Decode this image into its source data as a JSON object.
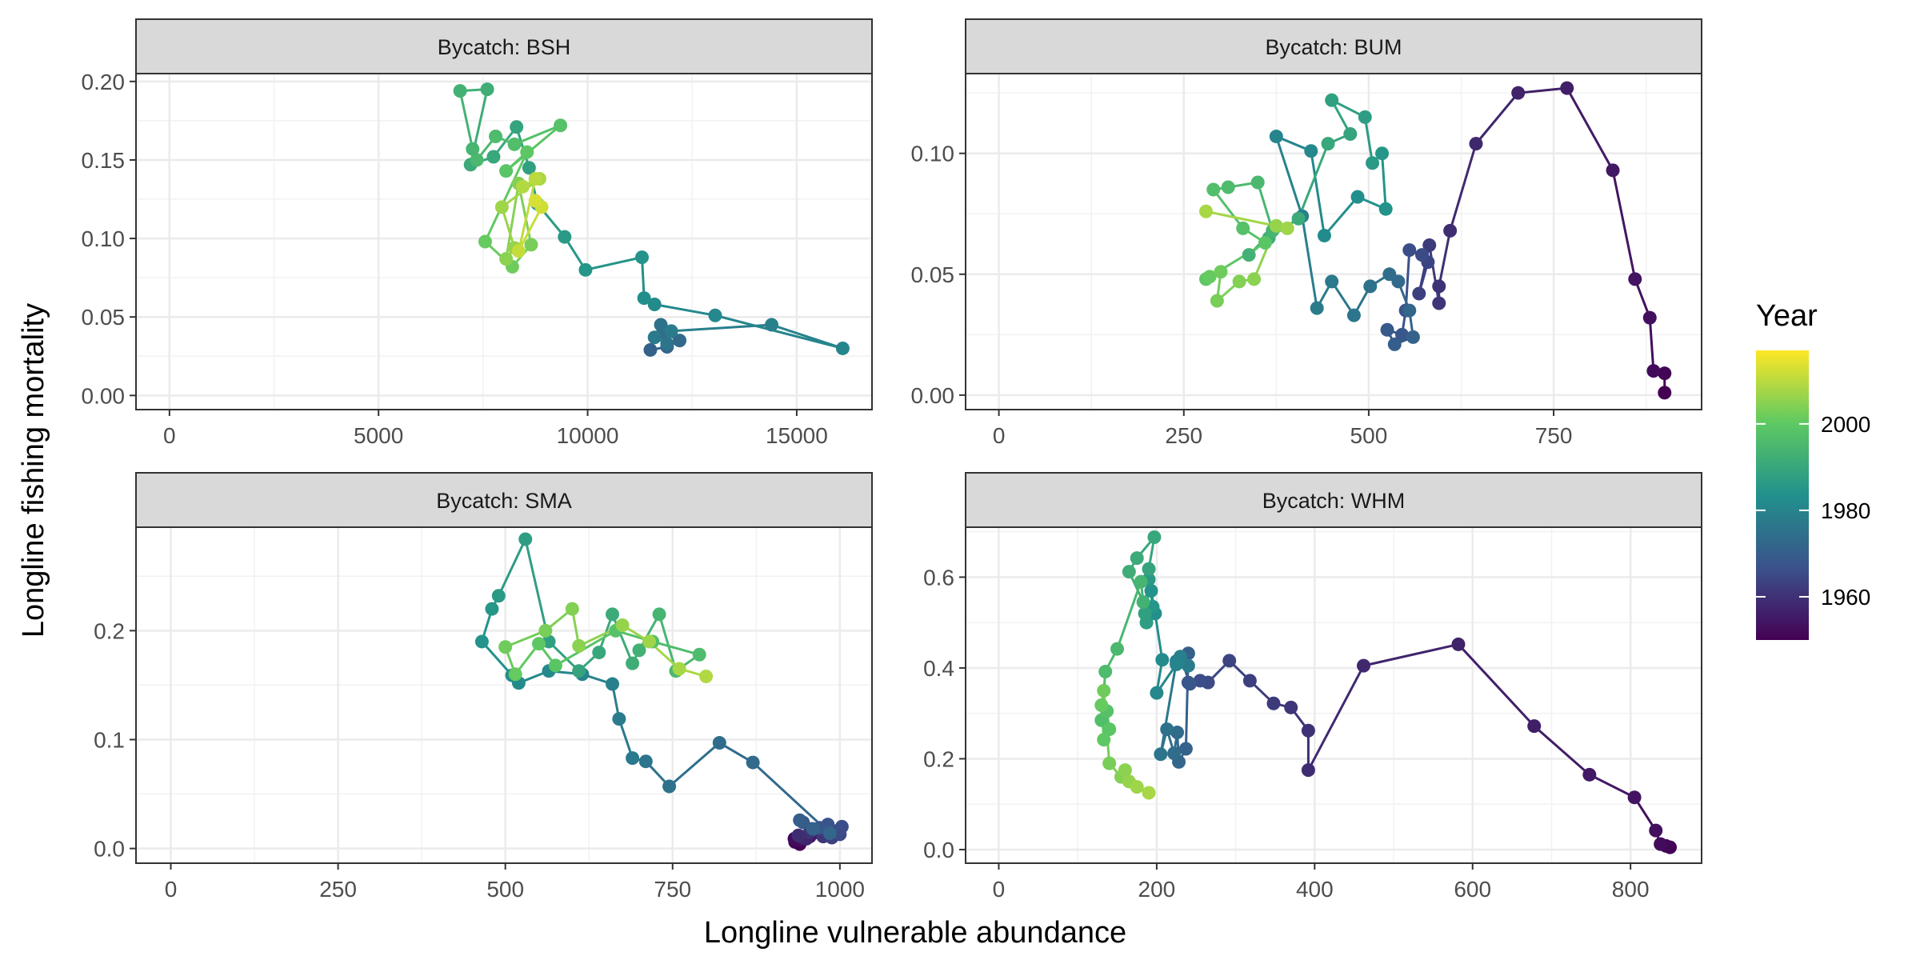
{
  "chart_data": {
    "type": "scatter",
    "style": "connected-path",
    "xlabel": "Longline vulnerable abundance",
    "ylabel": "Longline fishing mortality",
    "legend": {
      "title": "Year",
      "position": "right",
      "range": [
        1950,
        2017
      ],
      "ticks": [
        1960,
        1980,
        2000
      ]
    },
    "panels": [
      {
        "label": "Bycatch: BSH",
        "xlim": [
          -800,
          16800
        ],
        "ylim": [
          -0.009,
          0.205
        ],
        "xticks": [
          0,
          5000,
          10000,
          15000
        ],
        "xtick_labels": [
          "0",
          "5000",
          "10000",
          "15000"
        ],
        "yticks": [
          0,
          0.05,
          0.1,
          0.15,
          0.2
        ],
        "ytick_labels": [
          "0.00",
          "0.05",
          "0.10",
          "0.15",
          "0.20"
        ],
        "year_start": 1971,
        "x": [
          11500,
          11900,
          12200,
          11800,
          11750,
          11900,
          11600,
          12000,
          14400,
          16100,
          13050,
          11600,
          11350,
          11300,
          9950,
          9450,
          8800,
          8600,
          8300,
          7750,
          7200,
          7600,
          6950,
          7250,
          7350,
          7800,
          8250,
          9350,
          8050,
          8550,
          7550,
          8200,
          8650,
          8350,
          8050,
          8250,
          7950,
          8850,
          8450,
          8750,
          8350,
          8900,
          8750
        ],
        "y": [
          0.029,
          0.031,
          0.035,
          0.04,
          0.045,
          0.033,
          0.037,
          0.041,
          0.045,
          0.03,
          0.051,
          0.058,
          0.062,
          0.088,
          0.08,
          0.101,
          0.122,
          0.145,
          0.171,
          0.152,
          0.147,
          0.195,
          0.194,
          0.157,
          0.15,
          0.165,
          0.16,
          0.172,
          0.143,
          0.155,
          0.098,
          0.082,
          0.096,
          0.135,
          0.087,
          0.094,
          0.12,
          0.138,
          0.133,
          0.138,
          0.092,
          0.12,
          0.124
        ]
      },
      {
        "label": "Bycatch: BUM",
        "xlim": [
          -45,
          950
        ],
        "ylim": [
          -0.006,
          0.133
        ],
        "xticks": [
          0,
          250,
          500,
          750
        ],
        "xtick_labels": [
          "0",
          "250",
          "500",
          "750"
        ],
        "yticks": [
          0,
          0.05,
          0.1
        ],
        "ytick_labels": [
          "0.00",
          "0.05",
          "0.10"
        ],
        "year_start": 1950,
        "x": [
          900,
          900,
          885,
          880,
          860,
          830,
          768,
          702,
          645,
          610,
          595,
          595,
          582,
          568,
          580,
          572,
          555,
          550,
          545,
          525,
          535,
          560,
          555,
          540,
          528,
          502,
          480,
          450,
          430,
          410,
          375,
          422,
          440,
          485,
          523,
          518,
          505,
          495,
          450,
          475,
          445,
          405,
          365,
          338,
          370,
          350,
          310,
          290,
          330,
          360,
          280,
          285,
          300,
          295,
          325,
          345,
          375,
          390,
          280
        ],
        "y": [
          0.001,
          0.009,
          0.01,
          0.032,
          0.048,
          0.093,
          0.127,
          0.125,
          0.104,
          0.068,
          0.045,
          0.038,
          0.062,
          0.042,
          0.055,
          0.058,
          0.06,
          0.035,
          0.025,
          0.027,
          0.021,
          0.024,
          0.035,
          0.047,
          0.05,
          0.045,
          0.033,
          0.047,
          0.036,
          0.074,
          0.107,
          0.101,
          0.066,
          0.082,
          0.077,
          0.1,
          0.096,
          0.115,
          0.122,
          0.108,
          0.104,
          0.073,
          0.065,
          0.058,
          0.068,
          0.088,
          0.086,
          0.085,
          0.069,
          0.063,
          0.048,
          0.049,
          0.051,
          0.039,
          0.047,
          0.048,
          0.07,
          0.069,
          0.076
        ]
      },
      {
        "label": "Bycatch: SMA",
        "xlim": [
          -52,
          1048
        ],
        "ylim": [
          -0.0135,
          0.295
        ],
        "xticks": [
          0,
          250,
          500,
          750,
          1000
        ],
        "xtick_labels": [
          "0",
          "250",
          "500",
          "750",
          "1000"
        ],
        "yticks": [
          0,
          0.1,
          0.2
        ],
        "ytick_labels": [
          "0.0",
          "0.1",
          "0.2"
        ],
        "year_start": 1950,
        "x": [
          940,
          933,
          932,
          943,
          955,
          960,
          968,
          950,
          945,
          938,
          955,
          975,
          958,
          988,
          985,
          1000,
          1003,
          982,
          970,
          945,
          940,
          960,
          985,
          870,
          820,
          745,
          710,
          690,
          670,
          660,
          615,
          565,
          520,
          510,
          465,
          480,
          490,
          530,
          565,
          610,
          640,
          660,
          690,
          700,
          730,
          755,
          790,
          720,
          665,
          575,
          550,
          515,
          500,
          560,
          600,
          610,
          675,
          715,
          760,
          800
        ],
        "y": [
          0.004,
          0.006,
          0.009,
          0.008,
          0.011,
          0.014,
          0.016,
          0.009,
          0.01,
          0.012,
          0.015,
          0.011,
          0.018,
          0.01,
          0.017,
          0.013,
          0.02,
          0.022,
          0.019,
          0.024,
          0.026,
          0.018,
          0.014,
          0.079,
          0.097,
          0.057,
          0.08,
          0.083,
          0.119,
          0.151,
          0.16,
          0.163,
          0.152,
          0.159,
          0.19,
          0.22,
          0.232,
          0.284,
          0.19,
          0.163,
          0.18,
          0.215,
          0.17,
          0.182,
          0.215,
          0.163,
          0.178,
          0.19,
          0.2,
          0.168,
          0.188,
          0.16,
          0.185,
          0.2,
          0.22,
          0.186,
          0.205,
          0.19,
          0.165,
          0.158
        ]
      },
      {
        "label": "Bycatch: WHM",
        "xlim": [
          -42,
          890
        ],
        "ylim": [
          -0.03,
          0.71
        ],
        "xticks": [
          0,
          200,
          400,
          600,
          800
        ],
        "xtick_labels": [
          "0",
          "200",
          "400",
          "600",
          "800"
        ],
        "yticks": [
          0,
          0.2,
          0.4,
          0.6
        ],
        "ytick_labels": [
          "0.0",
          "0.2",
          "0.4",
          "0.6"
        ],
        "year_start": 1950,
        "x": [
          850,
          845,
          838,
          832,
          805,
          748,
          678,
          582,
          462,
          392,
          392,
          370,
          348,
          318,
          292,
          265,
          255,
          240,
          242,
          232,
          240,
          237,
          228,
          226,
          222,
          213,
          205,
          225,
          240,
          230,
          225,
          200,
          207,
          198,
          193,
          195,
          190,
          187,
          185,
          190,
          197,
          175,
          165,
          183,
          180,
          150,
          135,
          130,
          137,
          140,
          133,
          130,
          133,
          140,
          155,
          160,
          165,
          175,
          190
        ],
        "y": [
          0.005,
          0.008,
          0.012,
          0.042,
          0.115,
          0.165,
          0.272,
          0.452,
          0.405,
          0.175,
          0.262,
          0.313,
          0.322,
          0.372,
          0.416,
          0.368,
          0.372,
          0.368,
          0.365,
          0.415,
          0.432,
          0.222,
          0.193,
          0.258,
          0.212,
          0.265,
          0.21,
          0.415,
          0.405,
          0.425,
          0.408,
          0.345,
          0.418,
          0.52,
          0.57,
          0.535,
          0.595,
          0.5,
          0.52,
          0.618,
          0.688,
          0.642,
          0.612,
          0.545,
          0.59,
          0.442,
          0.392,
          0.285,
          0.305,
          0.265,
          0.242,
          0.318,
          0.35,
          0.19,
          0.16,
          0.175,
          0.15,
          0.138,
          0.125
        ]
      }
    ]
  }
}
